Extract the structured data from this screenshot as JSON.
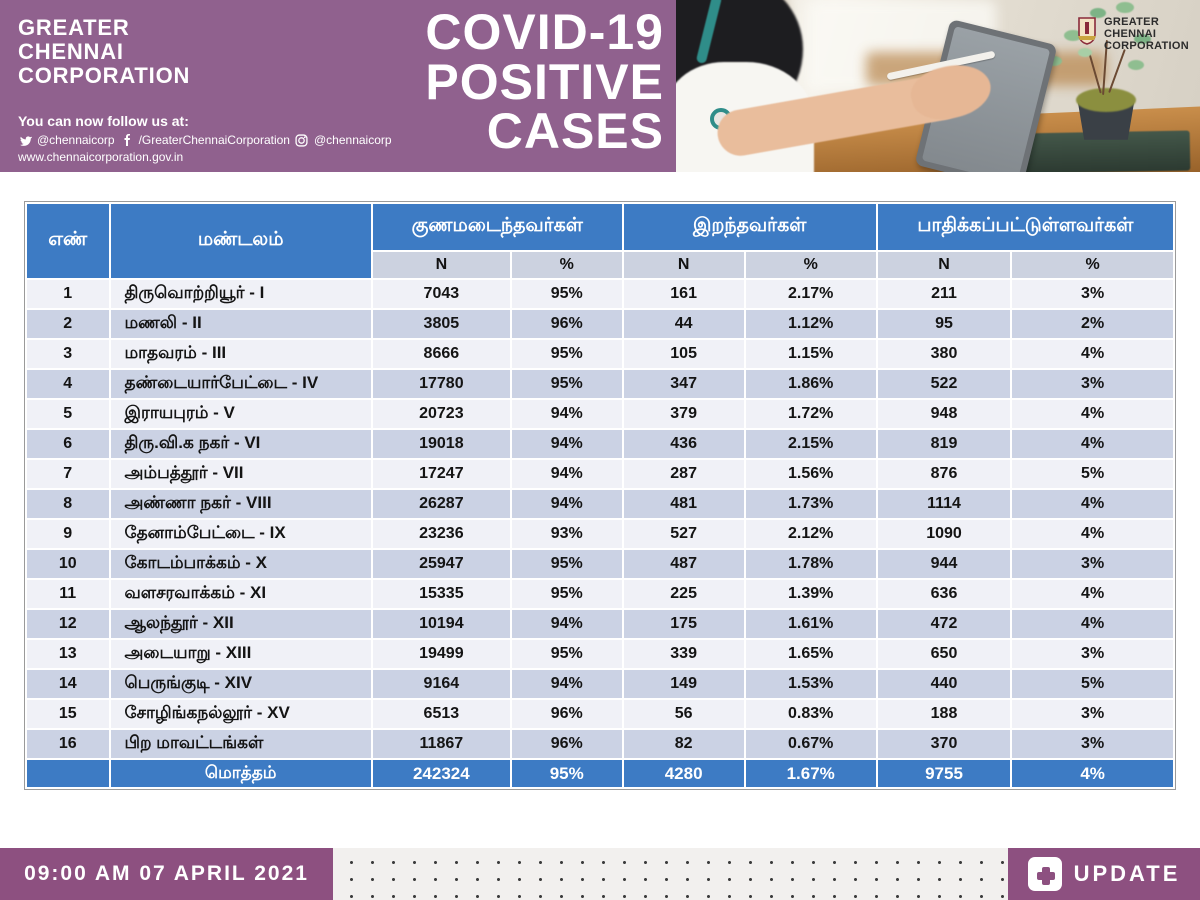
{
  "colors": {
    "purple_header": "#90618e",
    "purple_footer": "#8d5080",
    "blue_header": "#3d7bc4",
    "row_odd": "#f0f1f7",
    "row_even": "#cbd2e4",
    "subheader_bg": "#ccd2e0"
  },
  "brand": {
    "line1": "GREATER",
    "line2": "CHENNAI",
    "line3": "CORPORATION"
  },
  "follow": {
    "label": "You can now follow us at:",
    "twitter": "@chennaicorp",
    "facebook": "/GreaterChennaiCorporation",
    "instagram": "@chennaicorp",
    "website": "www.chennaicorporation.gov.in"
  },
  "title": {
    "line1": "COVID-19",
    "line2": "POSITIVE",
    "line3": "CASES"
  },
  "photo_logo": {
    "line1": "GREATER",
    "line2": "CHENNAI",
    "line3": "CORPORATION"
  },
  "table": {
    "headers": {
      "serial": "எண்",
      "zone": "மண்டலம்",
      "recovered": "குணமடைந்தவர்கள்",
      "deaths": "இறந்தவர்கள்",
      "affected": "பாதிக்கப்பட்டுள்ளவர்கள்",
      "n": "N",
      "pct": "%"
    },
    "rows": [
      {
        "no": "1",
        "zone": "திருவொற்றியூர் - I",
        "rec_n": "7043",
        "rec_p": "95%",
        "dead_n": "161",
        "dead_p": "2.17%",
        "aff_n": "211",
        "aff_p": "3%"
      },
      {
        "no": "2",
        "zone": "மணலி - II",
        "rec_n": "3805",
        "rec_p": "96%",
        "dead_n": "44",
        "dead_p": "1.12%",
        "aff_n": "95",
        "aff_p": "2%"
      },
      {
        "no": "3",
        "zone": "மாதவரம் - III",
        "rec_n": "8666",
        "rec_p": "95%",
        "dead_n": "105",
        "dead_p": "1.15%",
        "aff_n": "380",
        "aff_p": "4%"
      },
      {
        "no": "4",
        "zone": "தண்டையார்பேட்டை - IV",
        "rec_n": "17780",
        "rec_p": "95%",
        "dead_n": "347",
        "dead_p": "1.86%",
        "aff_n": "522",
        "aff_p": "3%"
      },
      {
        "no": "5",
        "zone": "இராயபுரம் - V",
        "rec_n": "20723",
        "rec_p": "94%",
        "dead_n": "379",
        "dead_p": "1.72%",
        "aff_n": "948",
        "aff_p": "4%"
      },
      {
        "no": "6",
        "zone": "திரு.வி.க நகர் - VI",
        "rec_n": "19018",
        "rec_p": "94%",
        "dead_n": "436",
        "dead_p": "2.15%",
        "aff_n": "819",
        "aff_p": "4%"
      },
      {
        "no": "7",
        "zone": "அம்பத்தூர் - VII",
        "rec_n": "17247",
        "rec_p": "94%",
        "dead_n": "287",
        "dead_p": "1.56%",
        "aff_n": "876",
        "aff_p": "5%"
      },
      {
        "no": "8",
        "zone": "அண்ணா நகர் - VIII",
        "rec_n": "26287",
        "rec_p": "94%",
        "dead_n": "481",
        "dead_p": "1.73%",
        "aff_n": "1114",
        "aff_p": "4%"
      },
      {
        "no": "9",
        "zone": "தேனாம்பேட்டை - IX",
        "rec_n": "23236",
        "rec_p": "93%",
        "dead_n": "527",
        "dead_p": "2.12%",
        "aff_n": "1090",
        "aff_p": "4%"
      },
      {
        "no": "10",
        "zone": "கோடம்பாக்கம் - X",
        "rec_n": "25947",
        "rec_p": "95%",
        "dead_n": "487",
        "dead_p": "1.78%",
        "aff_n": "944",
        "aff_p": "3%"
      },
      {
        "no": "11",
        "zone": "வளசரவாக்கம் - XI",
        "rec_n": "15335",
        "rec_p": "95%",
        "dead_n": "225",
        "dead_p": "1.39%",
        "aff_n": "636",
        "aff_p": "4%"
      },
      {
        "no": "12",
        "zone": "ஆலந்தூர் - XII",
        "rec_n": "10194",
        "rec_p": "94%",
        "dead_n": "175",
        "dead_p": "1.61%",
        "aff_n": "472",
        "aff_p": "4%"
      },
      {
        "no": "13",
        "zone": "அடையாறு - XIII",
        "rec_n": "19499",
        "rec_p": "95%",
        "dead_n": "339",
        "dead_p": "1.65%",
        "aff_n": "650",
        "aff_p": "3%"
      },
      {
        "no": "14",
        "zone": "பெருங்குடி - XIV",
        "rec_n": "9164",
        "rec_p": "94%",
        "dead_n": "149",
        "dead_p": "1.53%",
        "aff_n": "440",
        "aff_p": "5%"
      },
      {
        "no": "15",
        "zone": "சோழிங்கநல்லூர் - XV",
        "rec_n": "6513",
        "rec_p": "96%",
        "dead_n": "56",
        "dead_p": "0.83%",
        "aff_n": "188",
        "aff_p": "3%"
      },
      {
        "no": "16",
        "zone": "பிற மாவட்டங்கள்",
        "rec_n": "11867",
        "rec_p": "96%",
        "dead_n": "82",
        "dead_p": "0.67%",
        "aff_n": "370",
        "aff_p": "3%"
      }
    ],
    "total": {
      "label": "மொத்தம்",
      "rec_n": "242324",
      "rec_p": "95%",
      "dead_n": "4280",
      "dead_p": "1.67%",
      "aff_n": "9755",
      "aff_p": "4%"
    }
  },
  "footer": {
    "timestamp": "09:00 AM 07 APRIL 2021",
    "update_label": "UPDATE"
  }
}
